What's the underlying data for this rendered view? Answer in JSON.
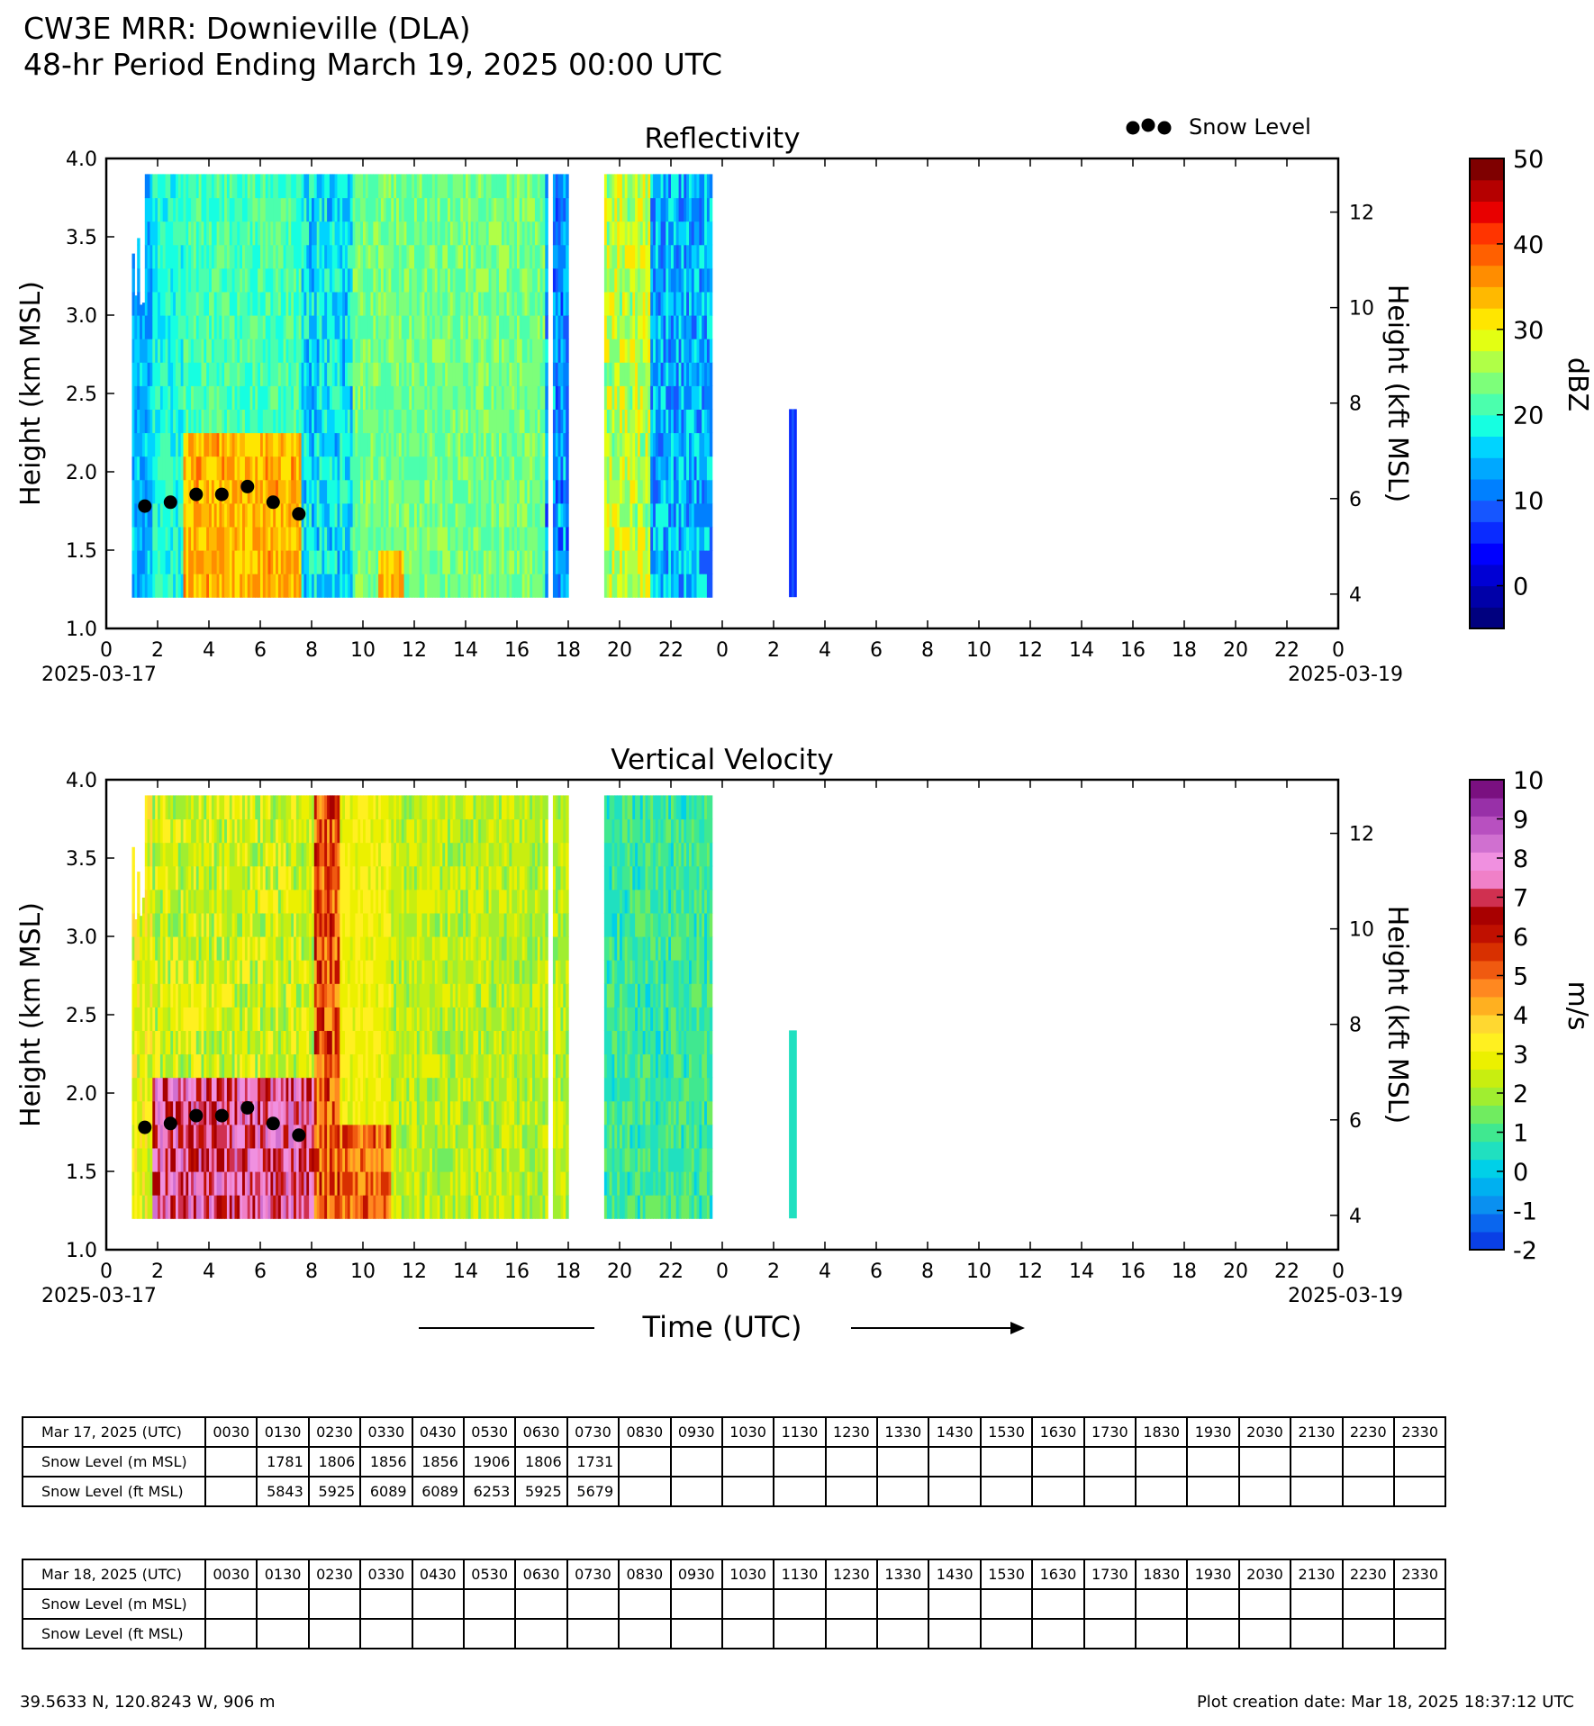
{
  "title_line1": "CW3E MRR: Downieville (DLA)",
  "title_line2": "48-hr Period Ending March 19, 2025 00:00 UTC",
  "legend_label": "Snow Level",
  "x_axis_label": "Time (UTC)",
  "x_ticks": [
    "0",
    "2",
    "4",
    "6",
    "8",
    "10",
    "12",
    "14",
    "16",
    "18",
    "20",
    "22",
    "0",
    "2",
    "4",
    "6",
    "8",
    "10",
    "12",
    "14",
    "16",
    "18",
    "20",
    "22",
    "0"
  ],
  "date_start": "2025-03-17",
  "date_end": "2025-03-19",
  "colors": {
    "snow_marker": "#000000"
  },
  "chart_data": [
    {
      "type": "heatmap",
      "title": "Reflectivity",
      "ylabel": "Height (km MSL)",
      "ylabel_right": "Height (kft MSL)",
      "ylim": [
        1.0,
        4.0
      ],
      "y_ticks": [
        "1.0",
        "1.5",
        "2.0",
        "2.5",
        "3.0",
        "3.5",
        "4.0"
      ],
      "y_right_ticks": [
        "4",
        "6",
        "8",
        "10",
        "12"
      ],
      "y_right_values": [
        4,
        6,
        8,
        10,
        12
      ],
      "colorbar_label": "dBZ",
      "colorbar_ticks": [
        "0",
        "10",
        "20",
        "30",
        "40",
        "50"
      ],
      "colorbar_tick_values": [
        0,
        10,
        20,
        30,
        40,
        50
      ],
      "colorbar_range": [
        -5,
        50
      ],
      "colorbar_colors": [
        "#00007f",
        "#0000a8",
        "#0000d4",
        "#0000ff",
        "#0a2bff",
        "#1656ff",
        "#0080ff",
        "#00a8ff",
        "#00d4ff",
        "#16ffe1",
        "#4bffad",
        "#7dff7a",
        "#b0ff47",
        "#e3ff13",
        "#ffe600",
        "#ffb900",
        "#ff8d00",
        "#ff6000",
        "#ff3400",
        "#e80000",
        "#b50000",
        "#7f0000"
      ],
      "snow_level": {
        "x_hours": [
          1.5,
          2.5,
          3.5,
          4.5,
          5.5,
          6.5,
          7.5
        ],
        "y_km": [
          1.781,
          1.806,
          1.856,
          1.856,
          1.906,
          1.806,
          1.731
        ]
      }
    },
    {
      "type": "heatmap",
      "title": "Vertical Velocity",
      "ylabel": "Height (km MSL)",
      "ylabel_right": "Height (kft MSL)",
      "ylim": [
        1.0,
        4.0
      ],
      "y_ticks": [
        "1.0",
        "1.5",
        "2.0",
        "2.5",
        "3.0",
        "3.5",
        "4.0"
      ],
      "y_right_ticks": [
        "4",
        "6",
        "8",
        "10",
        "12"
      ],
      "y_right_values": [
        4,
        6,
        8,
        10,
        12
      ],
      "colorbar_label": "m/s",
      "colorbar_ticks": [
        "-2",
        "-1",
        "0",
        "1",
        "2",
        "3",
        "4",
        "5",
        "6",
        "7",
        "8",
        "9",
        "10"
      ],
      "colorbar_tick_values": [
        -2,
        -1,
        0,
        1,
        2,
        3,
        4,
        5,
        6,
        7,
        8,
        9,
        10
      ],
      "colorbar_range": [
        -2,
        10
      ],
      "colorbar_colors": [
        "#0a40e6",
        "#0a66ee",
        "#0a90f0",
        "#00b0f0",
        "#00d0e8",
        "#20e0c0",
        "#40e890",
        "#70ec60",
        "#a0ee30",
        "#c8ee10",
        "#ecf000",
        "#fff020",
        "#ffd830",
        "#ffb020",
        "#ff8820",
        "#f05a10",
        "#d83000",
        "#c01000",
        "#a80000",
        "#d03050",
        "#f080c8",
        "#f090e0",
        "#d070d0",
        "#b850c0",
        "#9830a8",
        "#7a1080"
      ],
      "snow_level": {
        "x_hours": [
          1.5,
          2.5,
          3.5,
          4.5,
          5.5,
          6.5,
          7.5
        ],
        "y_km": [
          1.781,
          1.806,
          1.856,
          1.856,
          1.906,
          1.806,
          1.731
        ]
      }
    }
  ],
  "tables": [
    {
      "header_label": "Mar 17, 2025 (UTC)",
      "times": [
        "0030",
        "0130",
        "0230",
        "0330",
        "0430",
        "0530",
        "0630",
        "0730",
        "0830",
        "0930",
        "1030",
        "1130",
        "1230",
        "1330",
        "1430",
        "1530",
        "1630",
        "1730",
        "1830",
        "1930",
        "2030",
        "2130",
        "2230",
        "2330"
      ],
      "rows": [
        {
          "label": "Snow Level (m MSL)",
          "values": [
            "",
            "1781",
            "1806",
            "1856",
            "1856",
            "1906",
            "1806",
            "1731",
            "",
            "",
            "",
            "",
            "",
            "",
            "",
            "",
            "",
            "",
            "",
            "",
            "",
            "",
            "",
            ""
          ]
        },
        {
          "label": "Snow Level (ft MSL)",
          "values": [
            "",
            "5843",
            "5925",
            "6089",
            "6089",
            "6253",
            "5925",
            "5679",
            "",
            "",
            "",
            "",
            "",
            "",
            "",
            "",
            "",
            "",
            "",
            "",
            "",
            "",
            "",
            ""
          ]
        }
      ]
    },
    {
      "header_label": "Mar 18, 2025 (UTC)",
      "times": [
        "0030",
        "0130",
        "0230",
        "0330",
        "0430",
        "0530",
        "0630",
        "0730",
        "0830",
        "0930",
        "1030",
        "1130",
        "1230",
        "1330",
        "1430",
        "1530",
        "1630",
        "1730",
        "1830",
        "1930",
        "2030",
        "2130",
        "2230",
        "2330"
      ],
      "rows": [
        {
          "label": "Snow Level (m MSL)",
          "values": [
            "",
            "",
            "",
            "",
            "",
            "",
            "",
            "",
            "",
            "",
            "",
            "",
            "",
            "",
            "",
            "",
            "",
            "",
            "",
            "",
            "",
            "",
            "",
            ""
          ]
        },
        {
          "label": "Snow Level (ft MSL)",
          "values": [
            "",
            "",
            "",
            "",
            "",
            "",
            "",
            "",
            "",
            "",
            "",
            "",
            "",
            "",
            "",
            "",
            "",
            "",
            "",
            "",
            "",
            "",
            "",
            ""
          ]
        }
      ]
    }
  ],
  "footer_left": "39.5633 N, 120.8243 W, 906 m",
  "footer_right": "Plot creation date: Mar 18, 2025 18:37:12 UTC"
}
